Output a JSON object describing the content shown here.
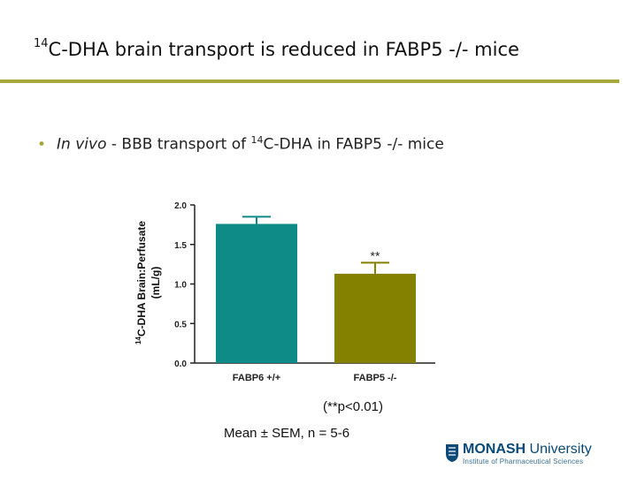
{
  "slide": {
    "title_sup": "14",
    "title_rest": "C-DHA brain transport is reduced in FABP5 -/- mice",
    "bullet_italic": "In vivo",
    "bullet_pre": " - BBB transport of ",
    "bullet_sup": "14",
    "bullet_post": "C-DHA in FABP5 -/- mice",
    "pvalue_note": "(**p<0.01)",
    "stats_note": "Mean ± SEM, n = 5-6"
  },
  "colors": {
    "accent_rule": "#a5a83a",
    "bar_wt": "#0e8a87",
    "bar_ko": "#848000"
  },
  "logo": {
    "name_bold": "MONASH",
    "name_rest": " University",
    "subtitle": "Institute of Pharmaceutical Sciences"
  },
  "chart_data": {
    "type": "bar",
    "categories": [
      "FABP6 +/+",
      "FABP5 -/-"
    ],
    "values": [
      1.76,
      1.13
    ],
    "errors": [
      0.09,
      0.14
    ],
    "significance": [
      "",
      "**"
    ],
    "ylabel_sup": "14",
    "ylabel_line1": "C-DHA Brain:Perfusate",
    "ylabel_line2": "(mL/g)",
    "ylim": [
      0,
      2.0
    ],
    "yticks": [
      "0.0",
      "0.5",
      "1.0",
      "1.5",
      "2.0"
    ],
    "ytick_values": [
      0,
      0.5,
      1.0,
      1.5,
      2.0
    ],
    "grid": false,
    "legend": "none"
  }
}
